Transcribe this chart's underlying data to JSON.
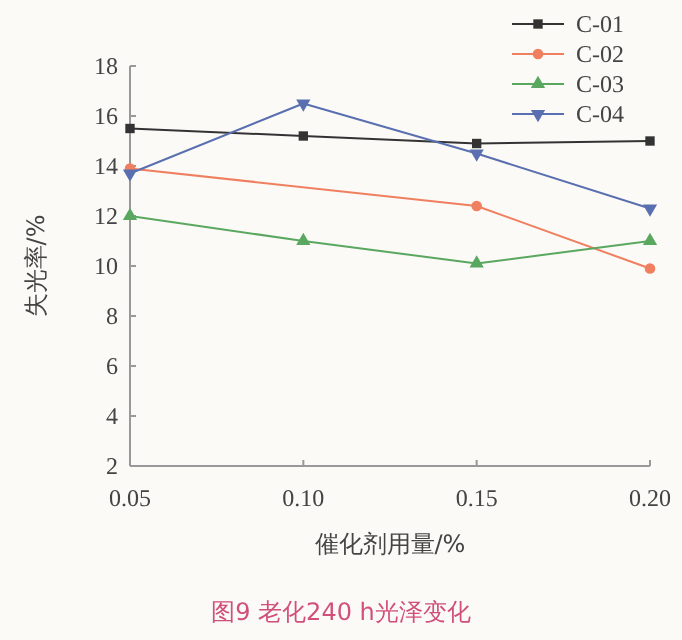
{
  "chart_data": {
    "type": "line",
    "title": "图9 老化240 h光泽变化",
    "xlabel": "催化剂用量/%",
    "ylabel": "失光率/%",
    "x": [
      0.05,
      0.1,
      0.15,
      0.2
    ],
    "xlim": [
      0.05,
      0.2
    ],
    "xticks": [
      0.05,
      {
        "value": 0.1,
        "label": "0.10"
      },
      0.15,
      {
        "value": 0.2,
        "label": "0.20"
      }
    ],
    "ylim": [
      2,
      18
    ],
    "yticks": [
      2,
      4,
      6,
      8,
      10,
      12,
      14,
      16,
      18
    ],
    "grid": false,
    "legend": "top right",
    "line_style": "solid",
    "series": [
      {
        "name": "C-01",
        "color": "#333333",
        "marker": "square",
        "values": [
          15.5,
          15.2,
          14.9,
          15.0
        ]
      },
      {
        "name": "C-02",
        "color": "#ef7f5f",
        "marker": "circle",
        "values": [
          13.9,
          null,
          12.4,
          9.9
        ]
      },
      {
        "name": "C-03",
        "color": "#5aa860",
        "marker": "triangle",
        "values": [
          12.0,
          11.0,
          10.1,
          11.0
        ]
      },
      {
        "name": "C-04",
        "color": "#5a6fb0",
        "marker": "triangle-down",
        "values": [
          13.7,
          16.5,
          14.5,
          12.3
        ]
      }
    ]
  }
}
